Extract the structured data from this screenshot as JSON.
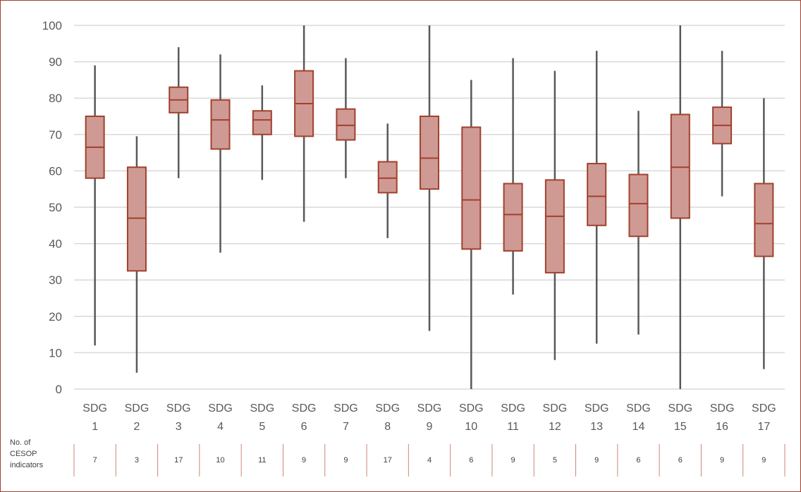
{
  "chart_data": {
    "type": "box",
    "categories": [
      {
        "line1": "SDG",
        "line2": "1"
      },
      {
        "line1": "SDG",
        "line2": "2"
      },
      {
        "line1": "SDG",
        "line2": "3"
      },
      {
        "line1": "SDG",
        "line2": "4"
      },
      {
        "line1": "SDG",
        "line2": "5"
      },
      {
        "line1": "SDG",
        "line2": "6"
      },
      {
        "line1": "SDG",
        "line2": "7"
      },
      {
        "line1": "SDG",
        "line2": "8"
      },
      {
        "line1": "SDG",
        "line2": "9"
      },
      {
        "line1": "SDG",
        "line2": "10"
      },
      {
        "line1": "SDG",
        "line2": "11"
      },
      {
        "line1": "SDG",
        "line2": "12"
      },
      {
        "line1": "SDG",
        "line2": "13"
      },
      {
        "line1": "SDG",
        "line2": "14"
      },
      {
        "line1": "SDG",
        "line2": "15"
      },
      {
        "line1": "SDG",
        "line2": "16"
      },
      {
        "line1": "SDG",
        "line2": "17"
      }
    ],
    "boxes": [
      {
        "min": 12,
        "q1": 58,
        "median": 66.5,
        "q3": 75,
        "max": 89
      },
      {
        "min": 4.5,
        "q1": 32.5,
        "median": 47,
        "q3": 61,
        "max": 69.5
      },
      {
        "min": 58,
        "q1": 76,
        "median": 79.5,
        "q3": 83,
        "max": 94
      },
      {
        "min": 37.5,
        "q1": 66,
        "median": 74,
        "q3": 79.5,
        "max": 92
      },
      {
        "min": 57.5,
        "q1": 70,
        "median": 74,
        "q3": 76.5,
        "max": 83.5
      },
      {
        "min": 46,
        "q1": 69.5,
        "median": 78.5,
        "q3": 87.5,
        "max": 100
      },
      {
        "min": 58,
        "q1": 68.5,
        "median": 72.5,
        "q3": 77,
        "max": 91
      },
      {
        "min": 41.5,
        "q1": 54,
        "median": 58,
        "q3": 62.5,
        "max": 73
      },
      {
        "min": 16,
        "q1": 55,
        "median": 63.5,
        "q3": 75,
        "max": 100
      },
      {
        "min": 0,
        "q1": 38.5,
        "median": 52,
        "q3": 72,
        "max": 85
      },
      {
        "min": 26,
        "q1": 38,
        "median": 48,
        "q3": 56.5,
        "max": 91
      },
      {
        "min": 8,
        "q1": 32,
        "median": 47.5,
        "q3": 57.5,
        "max": 87.5
      },
      {
        "min": 12.5,
        "q1": 45,
        "median": 53,
        "q3": 62,
        "max": 93
      },
      {
        "min": 15,
        "q1": 42,
        "median": 51,
        "q3": 59,
        "max": 76.5
      },
      {
        "min": 0,
        "q1": 47,
        "median": 61,
        "q3": 75.5,
        "max": 100
      },
      {
        "min": 53,
        "q1": 67.5,
        "median": 72.5,
        "q3": 77.5,
        "max": 93
      },
      {
        "min": 5.5,
        "q1": 36.5,
        "median": 45.5,
        "q3": 56.5,
        "max": 80
      }
    ],
    "yticks": [
      "0",
      "10",
      "20",
      "30",
      "40",
      "50",
      "60",
      "70",
      "80",
      "90",
      "100"
    ],
    "ylim": [
      0,
      100
    ],
    "grid": true,
    "row_label": [
      "No. of",
      "CESOP",
      "indicators"
    ],
    "indicator_counts": [
      "7",
      "3",
      "17",
      "10",
      "11",
      "9",
      "9",
      "17",
      "4",
      "6",
      "9",
      "5",
      "9",
      "6",
      "6",
      "9",
      "9"
    ],
    "colors": {
      "box_fill": "#d09a94",
      "box_stroke": "#a0412d",
      "whisker": "#595959",
      "grid": "#d9d9d9",
      "frame": "#a0412d"
    }
  }
}
